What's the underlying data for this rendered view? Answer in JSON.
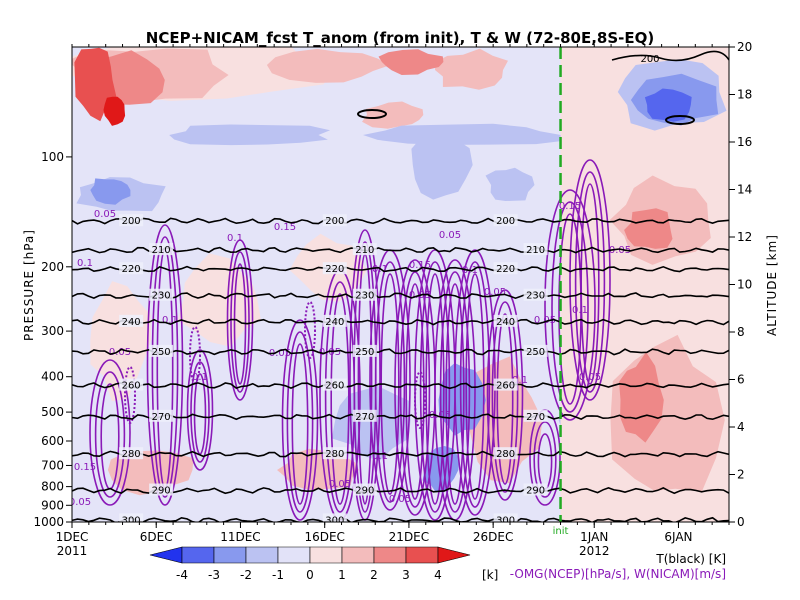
{
  "chart_data": {
    "type": "heatmap",
    "title": "NCEP+NICAM_fcst T_anom (from init), T & W   (72-80E,8S-EQ)",
    "x_axis": {
      "tick_labels": [
        "1DEC",
        "6DEC",
        "11DEC",
        "16DEC",
        "21DEC",
        "26DEC",
        "1JAN",
        "6JAN"
      ],
      "year_labels": [
        "2011",
        "2012"
      ],
      "range": [
        "2011-12-01",
        "2012-01-09"
      ]
    },
    "y_left": {
      "label": "PRESSURE [hPa]",
      "ticks": [
        100,
        200,
        300,
        400,
        500,
        600,
        700,
        800,
        900,
        1000
      ],
      "scale": "log",
      "range": [
        1000,
        50
      ]
    },
    "y_right": {
      "label": "ALTITUDE [km]",
      "ticks": [
        0,
        2,
        4,
        6,
        8,
        10,
        12,
        14,
        16,
        18,
        20
      ],
      "range": [
        0,
        20
      ]
    },
    "init_marker": {
      "date": "2011-12-30",
      "label": "init",
      "color": "#22aa22"
    },
    "colorbar": {
      "ticks": [
        "-4",
        "-3",
        "-2",
        "-1",
        "0",
        "1",
        "2",
        "3",
        "4"
      ],
      "unit": "[k]",
      "colors": [
        "#2233ee",
        "#5566ee",
        "#8899ee",
        "#bbc2f2",
        "#e2e2f8",
        "#f8e0e0",
        "#f3bcbc",
        "#ee8888",
        "#e85050",
        "#e01818"
      ]
    },
    "legend": {
      "temperature": "T(black) [K]",
      "omega": "-OMG(NCEP)[hPa/s], W(NICAM)[m/s]"
    },
    "temperature_contours": {
      "levels": [
        200,
        210,
        220,
        230,
        240,
        250,
        260,
        270,
        280,
        290,
        300
      ],
      "label_hpa": [
        150,
        180,
        203,
        240,
        283,
        342,
        423,
        515,
        652,
        820,
        990
      ]
    },
    "omega_contours": {
      "levels": [
        "0.05",
        "0.1",
        "0.15",
        "0.2"
      ],
      "color": "#8a1ab8"
    },
    "anomaly_colors": {
      "deep_red": "#e01818",
      "red": "#e85050",
      "pink": "#ee8888",
      "light_pink": "#f3bcbc",
      "faint_pink": "#f8e0e0",
      "faint_blue": "#e2e2f8",
      "light_blue": "#bbc2f2",
      "blue": "#8899ee",
      "deep_blue": "#5566ee"
    }
  }
}
